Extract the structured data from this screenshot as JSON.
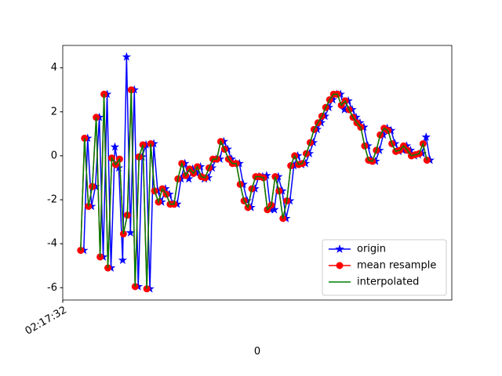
{
  "chart_data": {
    "type": "line",
    "xlabel": "0",
    "xlim": [
      0,
      100
    ],
    "xticks": [
      {
        "value": 0,
        "label": "02:17:32"
      }
    ],
    "ylim": [
      -6.56,
      5.02
    ],
    "yticks": [
      -6,
      -4,
      -2,
      0,
      2,
      4
    ],
    "legend": "lower right",
    "series": [
      {
        "name": "origin",
        "color": "#0000ff",
        "marker": "star",
        "x": [
          5.4,
          6.4,
          7.4,
          8.4,
          9.4,
          10.4,
          11.4,
          12.4,
          13.4,
          14.4,
          15.4,
          16.4,
          17.4,
          18.4,
          19.4,
          20.4,
          21.4,
          22.4,
          23.4,
          24.4,
          25.4,
          26.4,
          27.4,
          28.4,
          29.4,
          30.4,
          31.4,
          32.4,
          33.4,
          34.4,
          35.4,
          36.4,
          37.4,
          38.4,
          39.4,
          40.4,
          41.4,
          42.4,
          43.4,
          44.4,
          45.4,
          46.4,
          47.4,
          48.4,
          49.4,
          50.4,
          51.4,
          52.4,
          53.4,
          54.4,
          55.4,
          56.4,
          57.4,
          58.4,
          59.4,
          60.4,
          61.4,
          62.4,
          63.4,
          64.4,
          65.4,
          66.4,
          67.4,
          68.4,
          69.4,
          70.4,
          71.4,
          72.4,
          73.4,
          74.4,
          75.4,
          76.4,
          77.4,
          78.4,
          79.4,
          80.4,
          81.4,
          82.4,
          83.4,
          84.4,
          85.4,
          86.4,
          87.4,
          88.4,
          89.4,
          90.4,
          91.4,
          92.4,
          93.4,
          94.4
        ],
        "values": [
          -4.3,
          0.8,
          -2.3,
          -1.4,
          1.75,
          -4.6,
          2.8,
          -5.1,
          0.4,
          -0.55,
          -4.75,
          4.5,
          -3.5,
          3.0,
          -5.95,
          -0.05,
          0.5,
          -6.05,
          0.55,
          -1.6,
          -2.1,
          -1.5,
          -1.75,
          -2.2,
          -2.2,
          -1.05,
          -0.35,
          -1.05,
          -0.6,
          -0.8,
          -0.5,
          -1.05,
          -1.0,
          -0.55,
          -0.15,
          -0.15,
          0.65,
          0.3,
          -0.15,
          -0.35,
          -0.35,
          -1.3,
          -2.05,
          -2.35,
          -1.5,
          -0.95,
          -0.95,
          -0.9,
          -2.45,
          -2.45,
          -0.95,
          -1.6,
          -2.85,
          -2.05,
          -0.45,
          0.0,
          -0.4,
          -0.35,
          0.1,
          0.6,
          1.2,
          1.5,
          1.8,
          2.2,
          2.55,
          2.8,
          2.8,
          2.1,
          2.5,
          2.1,
          1.75,
          1.5,
          1.3,
          0.45,
          -0.2,
          -0.25,
          0.25,
          0.95,
          1.25,
          1.15,
          0.55,
          0.2,
          0.25,
          0.45,
          0.25,
          0.0,
          0.05,
          0.1,
          0.85,
          -0.2
        ]
      },
      {
        "name": "mean resample",
        "color": "#ff0000",
        "marker": "circle",
        "x": [
          4.6,
          5.6,
          6.6,
          7.6,
          8.6,
          9.6,
          10.6,
          11.6,
          12.6,
          13.6,
          14.6,
          15.6,
          16.6,
          17.6,
          18.6,
          19.6,
          20.6,
          21.6,
          22.6,
          23.6,
          24.6,
          25.6,
          26.6,
          27.6,
          28.6,
          29.6,
          30.6,
          31.6,
          32.6,
          33.6,
          34.6,
          35.6,
          36.6,
          37.6,
          38.6,
          39.6,
          40.6,
          41.6,
          42.6,
          43.6,
          44.6,
          45.6,
          46.6,
          47.6,
          48.6,
          49.6,
          50.6,
          51.6,
          52.6,
          53.6,
          54.6,
          55.6,
          56.6,
          57.6,
          58.6,
          59.6,
          60.6,
          61.6,
          62.6,
          63.6,
          64.6,
          65.6,
          66.6,
          67.6,
          68.6,
          69.6,
          70.6,
          71.6,
          72.6,
          73.6,
          74.6,
          75.6,
          76.6,
          77.6,
          78.6,
          79.6,
          80.6,
          81.6,
          82.6,
          83.6,
          84.6,
          85.6,
          86.6,
          87.6,
          88.6,
          89.6,
          90.6,
          91.6,
          92.6,
          93.6
        ],
        "values": [
          -4.3,
          0.8,
          -2.3,
          -1.4,
          1.75,
          -4.6,
          2.8,
          -5.1,
          -0.1,
          -0.4,
          -0.15,
          -3.55,
          -2.7,
          3.0,
          -5.95,
          -0.05,
          0.5,
          -6.05,
          0.55,
          -1.6,
          -2.1,
          -1.5,
          -1.75,
          -2.2,
          -2.2,
          -1.05,
          -0.35,
          -0.9,
          -0.6,
          -0.8,
          -0.5,
          -0.95,
          -1.0,
          -0.55,
          -0.15,
          -0.15,
          0.65,
          0.3,
          -0.15,
          -0.35,
          -0.35,
          -1.3,
          -2.05,
          -2.35,
          -1.5,
          -0.95,
          -0.95,
          -1.0,
          -2.45,
          -2.25,
          -0.95,
          -1.6,
          -2.85,
          -2.05,
          -0.45,
          0.0,
          -0.4,
          -0.35,
          0.1,
          0.6,
          1.2,
          1.5,
          1.8,
          2.2,
          2.55,
          2.8,
          2.8,
          2.3,
          2.5,
          2.1,
          1.75,
          1.5,
          1.3,
          0.45,
          -0.2,
          -0.25,
          0.25,
          0.95,
          1.25,
          1.15,
          0.55,
          0.2,
          0.25,
          0.45,
          0.25,
          0.0,
          0.05,
          0.1,
          0.55,
          -0.2
        ]
      },
      {
        "name": "interpolated",
        "color": "#008000",
        "marker": "none",
        "x": [
          4.6,
          5.6,
          6.6,
          7.6,
          8.6,
          9.6,
          10.6,
          11.6,
          12.6,
          13.6,
          14.6,
          15.6,
          16.6,
          17.6,
          18.6,
          19.6,
          20.6,
          21.6,
          22.6,
          23.6,
          24.6,
          25.6,
          26.6,
          27.6,
          28.6,
          29.6,
          30.6,
          31.6,
          32.6,
          33.6,
          34.6,
          35.6,
          36.6,
          37.6,
          38.6,
          39.6,
          40.6,
          41.6,
          42.6,
          43.6,
          44.6,
          45.6,
          46.6,
          47.6,
          48.6,
          49.6,
          50.6,
          51.6,
          52.6,
          53.6,
          54.6,
          55.6,
          56.6,
          57.6,
          58.6,
          59.6,
          60.6,
          61.6,
          62.6,
          63.6,
          64.6,
          65.6,
          66.6,
          67.6,
          68.6,
          69.6,
          70.6,
          71.6,
          72.6,
          73.6,
          74.6,
          75.6,
          76.6,
          77.6,
          78.6,
          79.6,
          80.6,
          81.6,
          82.6,
          83.6,
          84.6,
          85.6,
          86.6,
          87.6,
          88.6,
          89.6,
          90.6,
          91.6,
          92.6,
          93.6
        ],
        "values": [
          -4.3,
          0.8,
          -2.3,
          -1.4,
          1.75,
          -4.6,
          2.8,
          -5.1,
          -0.1,
          -0.4,
          -0.15,
          -3.55,
          -2.7,
          3.0,
          -5.95,
          -0.05,
          0.5,
          -6.05,
          0.55,
          -1.6,
          -2.1,
          -1.5,
          -1.75,
          -2.2,
          -2.2,
          -1.05,
          -0.35,
          -0.9,
          -0.6,
          -0.8,
          -0.5,
          -0.95,
          -1.0,
          -0.55,
          -0.15,
          -0.15,
          0.65,
          0.3,
          -0.15,
          -0.35,
          -0.35,
          -1.3,
          -2.05,
          -2.35,
          -1.5,
          -0.95,
          -0.95,
          -1.0,
          -2.45,
          -2.25,
          -0.95,
          -1.6,
          -2.85,
          -2.05,
          -0.45,
          0.0,
          -0.4,
          -0.35,
          0.1,
          0.6,
          1.2,
          1.5,
          1.8,
          2.2,
          2.55,
          2.8,
          2.8,
          2.3,
          2.5,
          2.1,
          1.75,
          1.5,
          1.3,
          0.45,
          -0.2,
          -0.25,
          0.25,
          0.95,
          1.25,
          1.15,
          0.55,
          0.2,
          0.25,
          0.45,
          0.25,
          0.0,
          0.05,
          0.1,
          0.55,
          -0.2
        ]
      }
    ]
  }
}
